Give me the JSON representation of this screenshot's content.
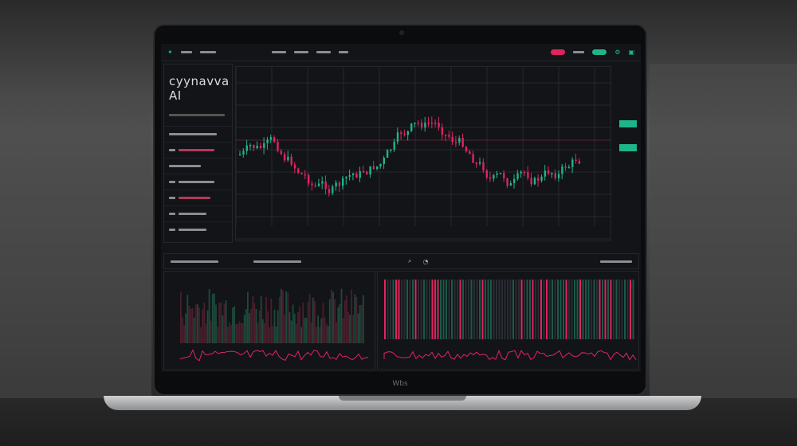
{
  "app": {
    "title": "cyynavva AI"
  },
  "device": {
    "bezel_label": "Wbs"
  },
  "colors": {
    "up": "#1fb58a",
    "down": "#e0245e",
    "grid": "#262931",
    "bg": "#121418"
  },
  "icons": [
    "search-icon",
    "settings-icon",
    "notification-icon",
    "user-icon"
  ]
}
